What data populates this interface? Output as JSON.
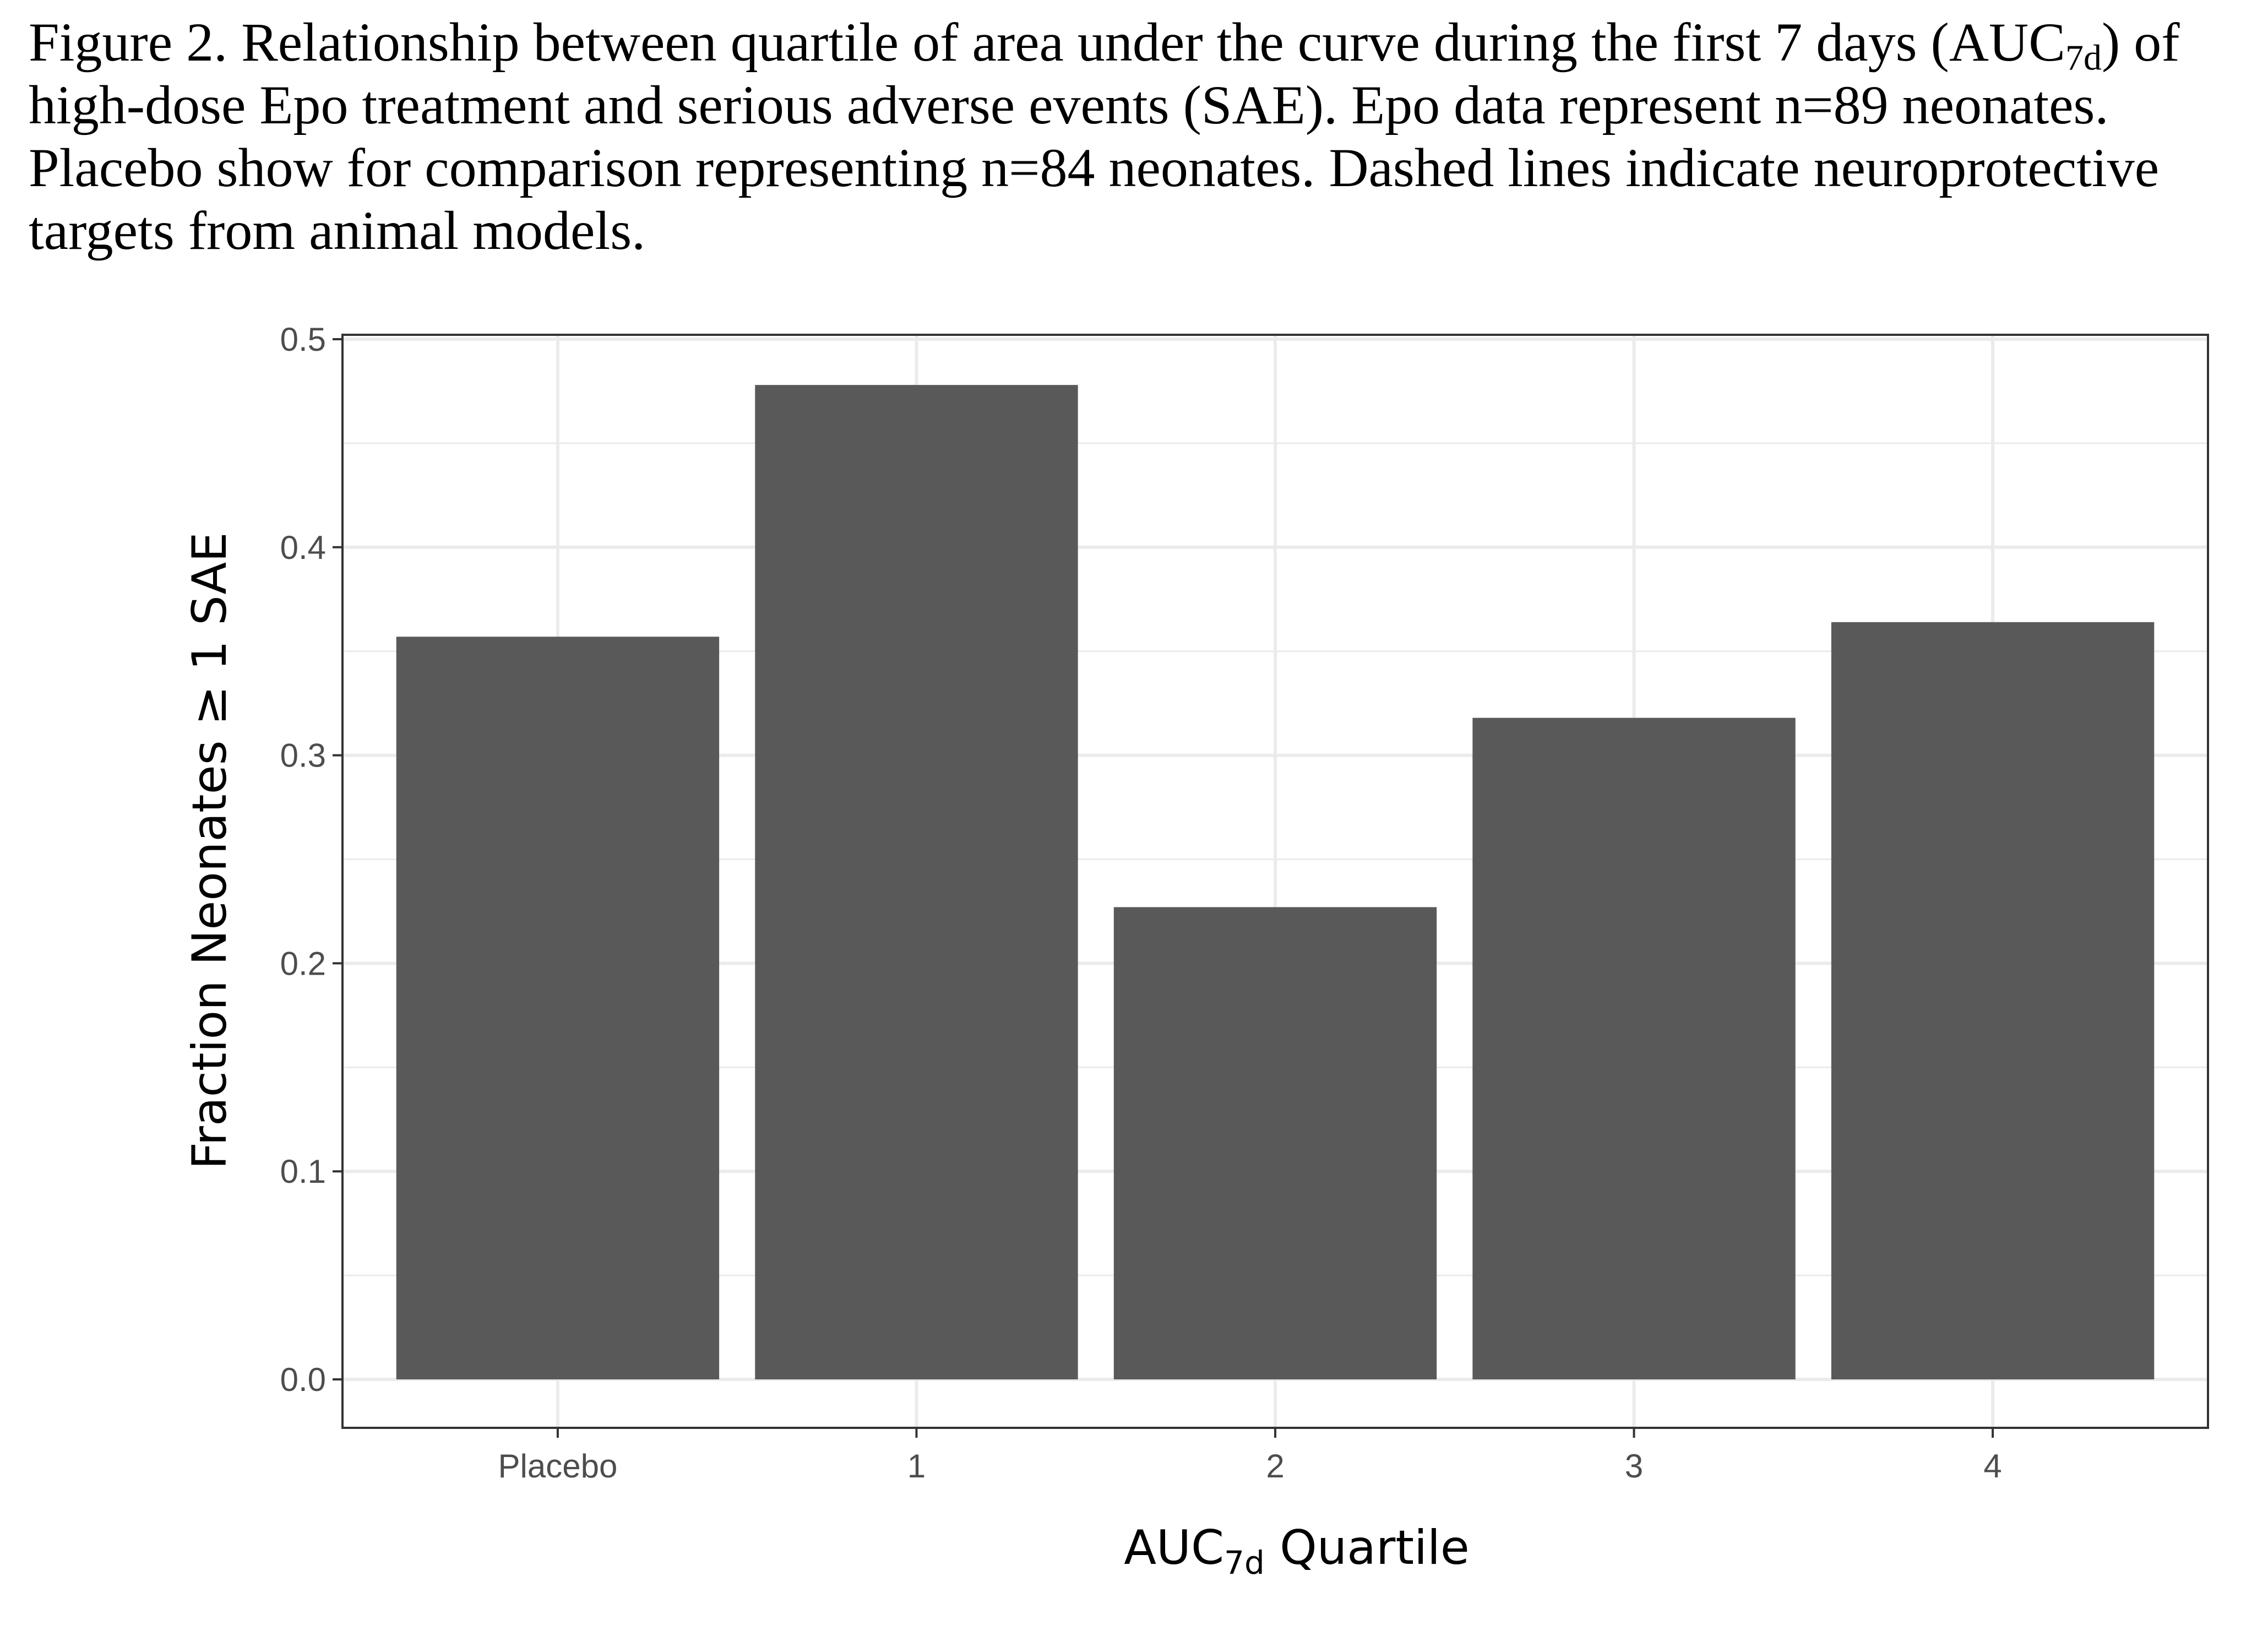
{
  "caption": {
    "prefix": "Figure 2. Relationship between quartile of area under the curve during the first 7 days (AUC",
    "subscript": "7d",
    "suffix": ") of high-dose Epo treatment and serious adverse events (SAE). Epo data represent n=89 neonates. Placebo show for comparison representing n=84 neonates. Dashed lines indicate neuroprotective targets from animal models."
  },
  "chart_data": {
    "type": "bar",
    "categories": [
      "Placebo",
      "1",
      "2",
      "3",
      "4"
    ],
    "values": [
      0.357,
      0.478,
      0.227,
      0.318,
      0.364
    ],
    "xlabel": {
      "prefix": "AUC",
      "subscript": "7d",
      "suffix": " Quartile"
    },
    "ylabel": "Fraction Neonates ≥ 1 SAE",
    "ylim": [
      0,
      0.5
    ],
    "yticks": [
      0.0,
      0.1,
      0.2,
      0.3,
      0.4,
      0.5
    ],
    "ytick_labels": [
      "0.0",
      "0.1",
      "0.2",
      "0.3",
      "0.4",
      "0.5"
    ],
    "grid": true,
    "legend": "none",
    "colors": {
      "bar": "#595959",
      "grid": "#ebebeb",
      "panel_border": "#333333",
      "background": "#ffffff"
    }
  }
}
